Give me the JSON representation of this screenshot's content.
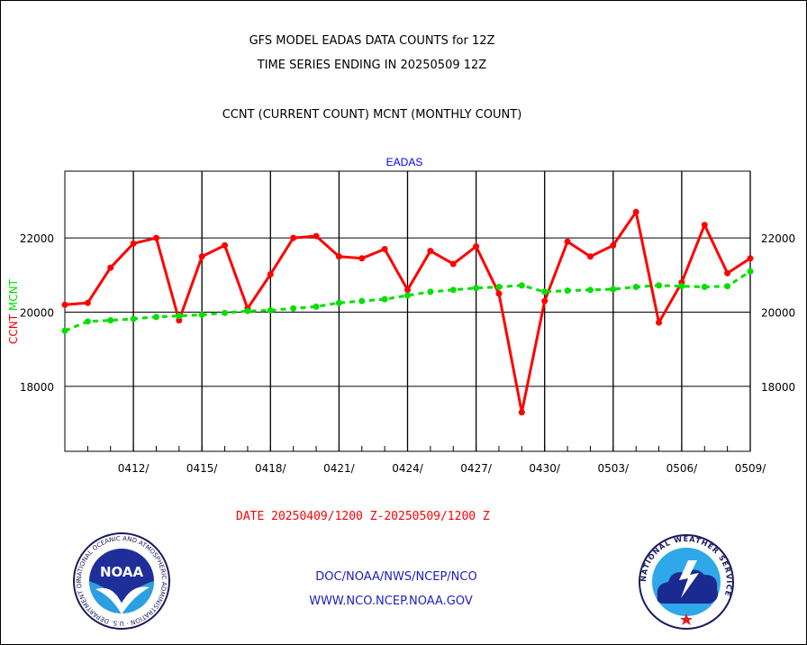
{
  "header": {
    "title_line1": "GFS MODEL EADAS DATA COUNTS for 12Z",
    "title_line2": "TIME SERIES ENDING IN 20250509 12Z",
    "title_line3": "CCNT (CURRENT COUNT) MCNT (MONTHLY COUNT)"
  },
  "footer": {
    "date_range": "DATE 20250409/1200 Z-20250509/1200 Z",
    "org": "DOC/NOAA/NWS/NCEP/NCO",
    "url": "WWW.NCO.NCEP.NOAA.GOV"
  },
  "logos": {
    "left": {
      "icon": "noaa-logo-icon",
      "text": "NOAA",
      "ring_text": "NATIONAL OCEANIC AND ATMOSPHERIC ADMINISTRATION · U.S. DEPARTMENT OF COMMERCE"
    },
    "right": {
      "icon": "nws-logo-icon",
      "ring_text": "NATIONAL WEATHER SERVICE"
    }
  },
  "colors": {
    "ccnt": "#ff0000",
    "mcnt": "#00e000",
    "panel_title": "#0000ff",
    "footer_text": "#2020c0"
  },
  "chart_data": {
    "type": "line",
    "title": "EADAS",
    "ylabel_left_parts": [
      {
        "text": "CCNT",
        "color": "#ff0000"
      },
      {
        "text": "MCNT",
        "color": "#00e000"
      }
    ],
    "ylim": [
      16250,
      23800
    ],
    "yticks": [
      18000,
      20000,
      22000
    ],
    "xlim": [
      0,
      30
    ],
    "grid": true,
    "x_tick_labels": [
      {
        "x": 3,
        "label": "0412/"
      },
      {
        "x": 6,
        "label": "0415/"
      },
      {
        "x": 9,
        "label": "0418/"
      },
      {
        "x": 12,
        "label": "0421/"
      },
      {
        "x": 15,
        "label": "0424/"
      },
      {
        "x": 18,
        "label": "0427/"
      },
      {
        "x": 21,
        "label": "0430/"
      },
      {
        "x": 24,
        "label": "0503/"
      },
      {
        "x": 27,
        "label": "0506/"
      },
      {
        "x": 30,
        "label": "0509/"
      }
    ],
    "series": [
      {
        "name": "CCNT",
        "color": "#ff0000",
        "style": "solid",
        "x": [
          0,
          1,
          2,
          3,
          4,
          5,
          6,
          7,
          8,
          9,
          10,
          11,
          12,
          13,
          14,
          15,
          16,
          17,
          18,
          19,
          20,
          21,
          22,
          23,
          24,
          25,
          26,
          27,
          28,
          29,
          30
        ],
        "values": [
          20200,
          20250,
          21200,
          21850,
          22000,
          19780,
          21500,
          21800,
          20100,
          21020,
          22000,
          22050,
          21500,
          21450,
          21700,
          20600,
          21650,
          21300,
          21770,
          20500,
          17300,
          20300,
          21900,
          21500,
          21800,
          22700,
          19720,
          20800,
          22350,
          21050,
          21450
        ]
      },
      {
        "name": "MCNT",
        "color": "#00e000",
        "style": "dashed",
        "x": [
          0,
          1,
          2,
          3,
          4,
          5,
          6,
          7,
          8,
          9,
          10,
          11,
          12,
          13,
          14,
          15,
          16,
          17,
          18,
          19,
          20,
          21,
          22,
          23,
          24,
          25,
          26,
          27,
          28,
          29,
          30
        ],
        "values": [
          19500,
          19750,
          19780,
          19820,
          19870,
          19900,
          19930,
          19980,
          20030,
          20050,
          20100,
          20150,
          20250,
          20300,
          20350,
          20450,
          20550,
          20600,
          20650,
          20680,
          20720,
          20550,
          20580,
          20600,
          20620,
          20680,
          20720,
          20700,
          20680,
          20700,
          21100
        ]
      }
    ]
  }
}
